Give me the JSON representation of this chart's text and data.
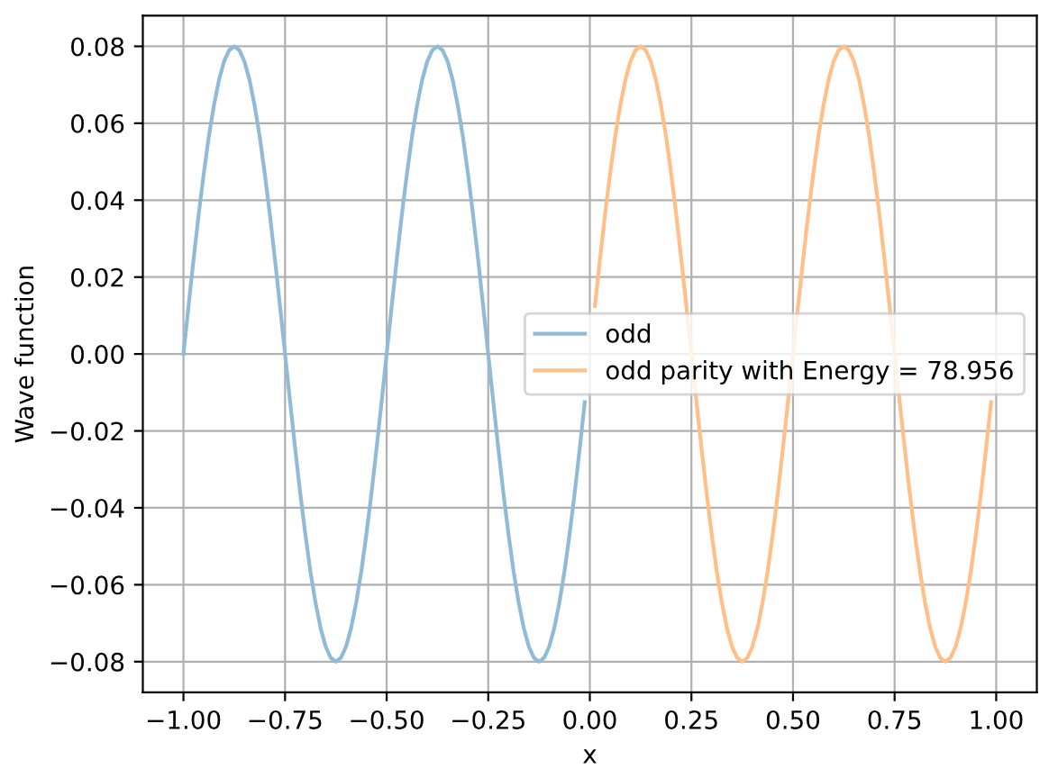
{
  "chart_data": {
    "type": "line",
    "xlabel": "x",
    "ylabel": "Wave function",
    "series": [
      {
        "name": "odd",
        "color": "#8fbbd9",
        "x": [
          -1,
          -0.9875,
          -0.975,
          -0.9625,
          -0.95,
          -0.9375,
          -0.925,
          -0.9125,
          -0.9,
          -0.8875,
          -0.875,
          -0.8625,
          -0.85,
          -0.8375,
          -0.825,
          -0.8125,
          -0.8,
          -0.7875,
          -0.775,
          -0.7625,
          -0.75,
          -0.7375,
          -0.725,
          -0.7125,
          -0.7,
          -0.6875,
          -0.675,
          -0.6625,
          -0.65,
          -0.6375,
          -0.625,
          -0.6125,
          -0.6,
          -0.5875,
          -0.575,
          -0.5625,
          -0.55,
          -0.5375,
          -0.525,
          -0.5125,
          -0.5,
          -0.4875,
          -0.475,
          -0.4625,
          -0.45,
          -0.4375,
          -0.425,
          -0.4125,
          -0.4,
          -0.3875,
          -0.375,
          -0.3625,
          -0.35,
          -0.3375,
          -0.325,
          -0.3125,
          -0.3,
          -0.2875,
          -0.275,
          -0.2625,
          -0.25,
          -0.2375,
          -0.225,
          -0.2125,
          -0.2,
          -0.1875,
          -0.175,
          -0.1625,
          -0.15,
          -0.1375,
          -0.125,
          -0.1125,
          -0.1,
          -0.0875,
          -0.075,
          -0.0625,
          -0.05,
          -0.0375,
          -0.025,
          -0.0125
        ],
        "values": [
          0,
          0.0125,
          0.0247,
          0.0363,
          0.047,
          0.0566,
          0.0647,
          0.0713,
          0.0761,
          0.079,
          0.08,
          0.079,
          0.0761,
          0.0713,
          0.0647,
          0.0566,
          0.047,
          0.0363,
          0.0247,
          0.0125,
          0,
          -0.0125,
          -0.0247,
          -0.0363,
          -0.047,
          -0.0566,
          -0.0647,
          -0.0713,
          -0.0761,
          -0.079,
          -0.08,
          -0.079,
          -0.0761,
          -0.0713,
          -0.0647,
          -0.0566,
          -0.047,
          -0.0363,
          -0.0247,
          -0.0125,
          0,
          0.0125,
          0.0247,
          0.0363,
          0.047,
          0.0566,
          0.0647,
          0.0713,
          0.0761,
          0.079,
          0.08,
          0.079,
          0.0761,
          0.0713,
          0.0647,
          0.0566,
          0.047,
          0.0363,
          0.0247,
          0.0125,
          0,
          -0.0125,
          -0.0247,
          -0.0363,
          -0.047,
          -0.0566,
          -0.0647,
          -0.0713,
          -0.0761,
          -0.079,
          -0.08,
          -0.079,
          -0.0761,
          -0.0713,
          -0.0647,
          -0.0566,
          -0.047,
          -0.0363,
          -0.0247,
          -0.0125
        ]
      },
      {
        "name": "odd parity with Energy = 78.956",
        "color": "#ffbf87",
        "x": [
          0.0125,
          0.025,
          0.0375,
          0.05,
          0.0625,
          0.075,
          0.0875,
          0.1,
          0.1125,
          0.125,
          0.1375,
          0.15,
          0.1625,
          0.175,
          0.1875,
          0.2,
          0.2125,
          0.225,
          0.2375,
          0.2625,
          0.275,
          0.2875,
          0.3,
          0.3125,
          0.325,
          0.3375,
          0.35,
          0.3625,
          0.375,
          0.3875,
          0.4,
          0.4125,
          0.425,
          0.4375,
          0.45,
          0.4625,
          0.475,
          0.4875,
          0.5125,
          0.525,
          0.5375,
          0.55,
          0.5625,
          0.575,
          0.5875,
          0.6,
          0.6125,
          0.625,
          0.6375,
          0.65,
          0.6625,
          0.675,
          0.6875,
          0.7,
          0.7125,
          0.725,
          0.7375,
          0.7625,
          0.775,
          0.7875,
          0.8,
          0.8125,
          0.825,
          0.8375,
          0.85,
          0.8625,
          0.875,
          0.8875,
          0.9,
          0.9125,
          0.925,
          0.9375,
          0.95,
          0.9625,
          0.975,
          0.9875
        ],
        "values": [
          0.0125,
          0.0247,
          0.0363,
          0.047,
          0.0566,
          0.0647,
          0.0713,
          0.0761,
          0.079,
          0.08,
          0.079,
          0.0761,
          0.0713,
          0.0647,
          0.0566,
          0.047,
          0.0363,
          0.0247,
          0.0125,
          -0.0125,
          -0.0247,
          -0.0363,
          -0.047,
          -0.0566,
          -0.0647,
          -0.0713,
          -0.0761,
          -0.079,
          -0.08,
          -0.079,
          -0.0761,
          -0.0713,
          -0.0647,
          -0.0566,
          -0.047,
          -0.0363,
          -0.0247,
          -0.0125,
          0.0125,
          0.0247,
          0.0363,
          0.047,
          0.0566,
          0.0647,
          0.0713,
          0.0761,
          0.079,
          0.08,
          0.079,
          0.0761,
          0.0713,
          0.0647,
          0.0566,
          0.047,
          0.0363,
          0.0247,
          0.0125,
          -0.0125,
          -0.0247,
          -0.0363,
          -0.047,
          -0.0566,
          -0.0647,
          -0.0713,
          -0.0761,
          -0.079,
          -0.08,
          -0.079,
          -0.0761,
          -0.0713,
          -0.0647,
          -0.0566,
          -0.047,
          -0.0363,
          -0.0247,
          -0.0125
        ]
      }
    ],
    "xlim": [
      -1.1,
      1.1
    ],
    "ylim": [
      -0.088,
      0.088
    ],
    "xticks": [
      {
        "value": -1,
        "label": "−1.00"
      },
      {
        "value": -0.75,
        "label": "−0.75"
      },
      {
        "value": -0.5,
        "label": "−0.50"
      },
      {
        "value": -0.25,
        "label": "−0.25"
      },
      {
        "value": 0,
        "label": "0.00"
      },
      {
        "value": 0.25,
        "label": "0.25"
      },
      {
        "value": 0.5,
        "label": "0.50"
      },
      {
        "value": 0.75,
        "label": "0.75"
      },
      {
        "value": 1,
        "label": "1.00"
      }
    ],
    "yticks": [
      {
        "value": -0.08,
        "label": "−0.08"
      },
      {
        "value": -0.06,
        "label": "−0.06"
      },
      {
        "value": -0.04,
        "label": "−0.04"
      },
      {
        "value": -0.02,
        "label": "−0.02"
      },
      {
        "value": 0,
        "label": "0.00"
      },
      {
        "value": 0.02,
        "label": "0.02"
      },
      {
        "value": 0.04,
        "label": "0.04"
      },
      {
        "value": 0.06,
        "label": "0.06"
      },
      {
        "value": 0.08,
        "label": "0.08"
      }
    ],
    "grid": true,
    "legend": "center right"
  }
}
